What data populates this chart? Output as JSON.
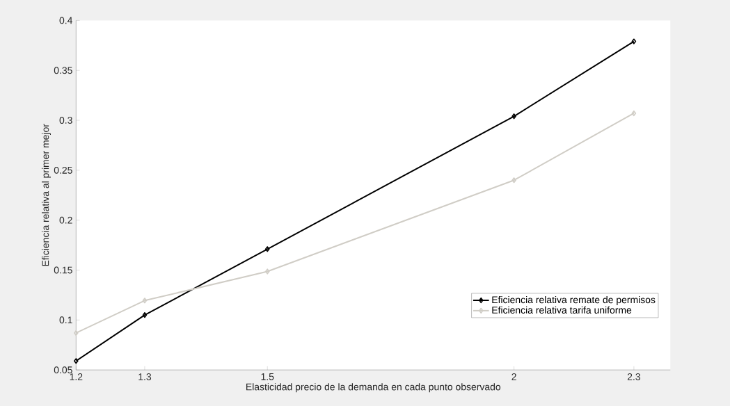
{
  "chart_data": {
    "type": "line",
    "xlabel": "Elasticidad precio de la demanda en cada punto observado",
    "ylabel": "Eficiencia relativa al primer mejor",
    "x": [
      1.2,
      1.3,
      1.5,
      2,
      2.3
    ],
    "series": [
      {
        "name": "Eficiencia relativa remate de permisos",
        "color": "#000000",
        "values": [
          0.059,
          0.105,
          0.171,
          0.304,
          0.379
        ]
      },
      {
        "name": "Eficiencia relativa tarifa uniforme",
        "color": "#d0cdc6",
        "values": [
          0.087,
          0.1195,
          0.1486,
          0.24,
          0.307
        ]
      }
    ],
    "log": "x",
    "xlim": [
      1.2,
      2.4
    ],
    "xticks": [
      1.2,
      1.3,
      1.5,
      2,
      2.3
    ],
    "ylim": [
      0.05,
      0.4
    ],
    "yticks": [
      0.05,
      0.1,
      0.15,
      0.2,
      0.25,
      0.3,
      0.35,
      0.4
    ],
    "marker": "diamond",
    "line_style": "solid",
    "grid": false,
    "legend": "bottom right"
  }
}
